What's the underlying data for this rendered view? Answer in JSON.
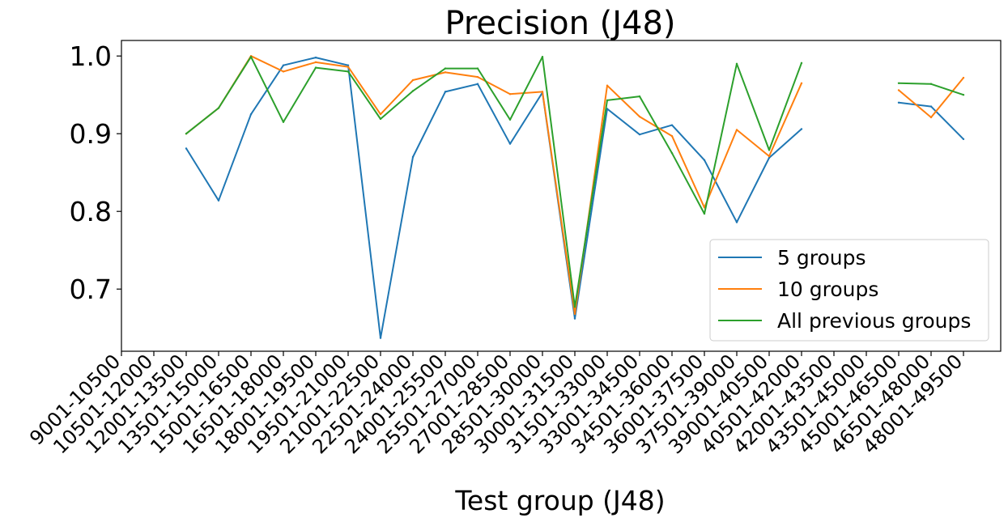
{
  "chart_data": {
    "type": "line",
    "title": "Precision (J48)",
    "xlabel": "Test group (J48)",
    "ylabel": "",
    "ylim": [
      0.62,
      1.02
    ],
    "yticks": [
      "0.7",
      "0.8",
      "0.9",
      "1.0"
    ],
    "ytick_values": [
      0.7,
      0.8,
      0.9,
      1.0
    ],
    "categories": [
      "9001-10500",
      "10501-12000",
      "12001-13500",
      "13501-15000",
      "15001-16500",
      "16501-18000",
      "18001-19500",
      "19501-21000",
      "21001-22500",
      "22501-24000",
      "24001-25500",
      "25501-27000",
      "27001-28500",
      "28501-30000",
      "30001-31500",
      "31501-33000",
      "33001-34500",
      "34501-36000",
      "36001-37500",
      "37501-39000",
      "39001-40500",
      "40501-42000",
      "42001-43500",
      "43501-45000",
      "45001-46500",
      "46501-48000",
      "48001-49500"
    ],
    "legend_position": "lower-right",
    "grid": false,
    "series": [
      {
        "name": "5 groups",
        "color": "#1f77b4",
        "values": [
          null,
          null,
          0.881,
          0.814,
          0.925,
          0.988,
          0.998,
          0.988,
          0.637,
          0.87,
          0.954,
          0.964,
          0.887,
          0.953,
          0.662,
          0.932,
          0.899,
          0.911,
          0.866,
          0.786,
          0.869,
          0.906,
          null,
          null,
          0.94,
          0.935,
          0.893
        ]
      },
      {
        "name": "10 groups",
        "color": "#ff7f0e",
        "values": [
          null,
          null,
          0.9,
          0.933,
          1.0,
          0.98,
          0.992,
          0.986,
          0.925,
          0.969,
          0.979,
          0.973,
          0.951,
          0.954,
          0.668,
          0.962,
          0.922,
          0.897,
          0.805,
          0.905,
          0.871,
          0.965,
          null,
          null,
          0.956,
          0.921,
          0.972
        ]
      },
      {
        "name": "All previous groups",
        "color": "#2ca02c",
        "values": [
          null,
          null,
          0.9,
          0.933,
          0.999,
          0.915,
          0.985,
          0.98,
          0.919,
          0.955,
          0.984,
          0.984,
          0.918,
          0.999,
          0.677,
          0.943,
          0.948,
          0.875,
          0.797,
          0.99,
          0.879,
          0.991,
          null,
          null,
          0.965,
          0.964,
          0.95
        ]
      }
    ]
  }
}
